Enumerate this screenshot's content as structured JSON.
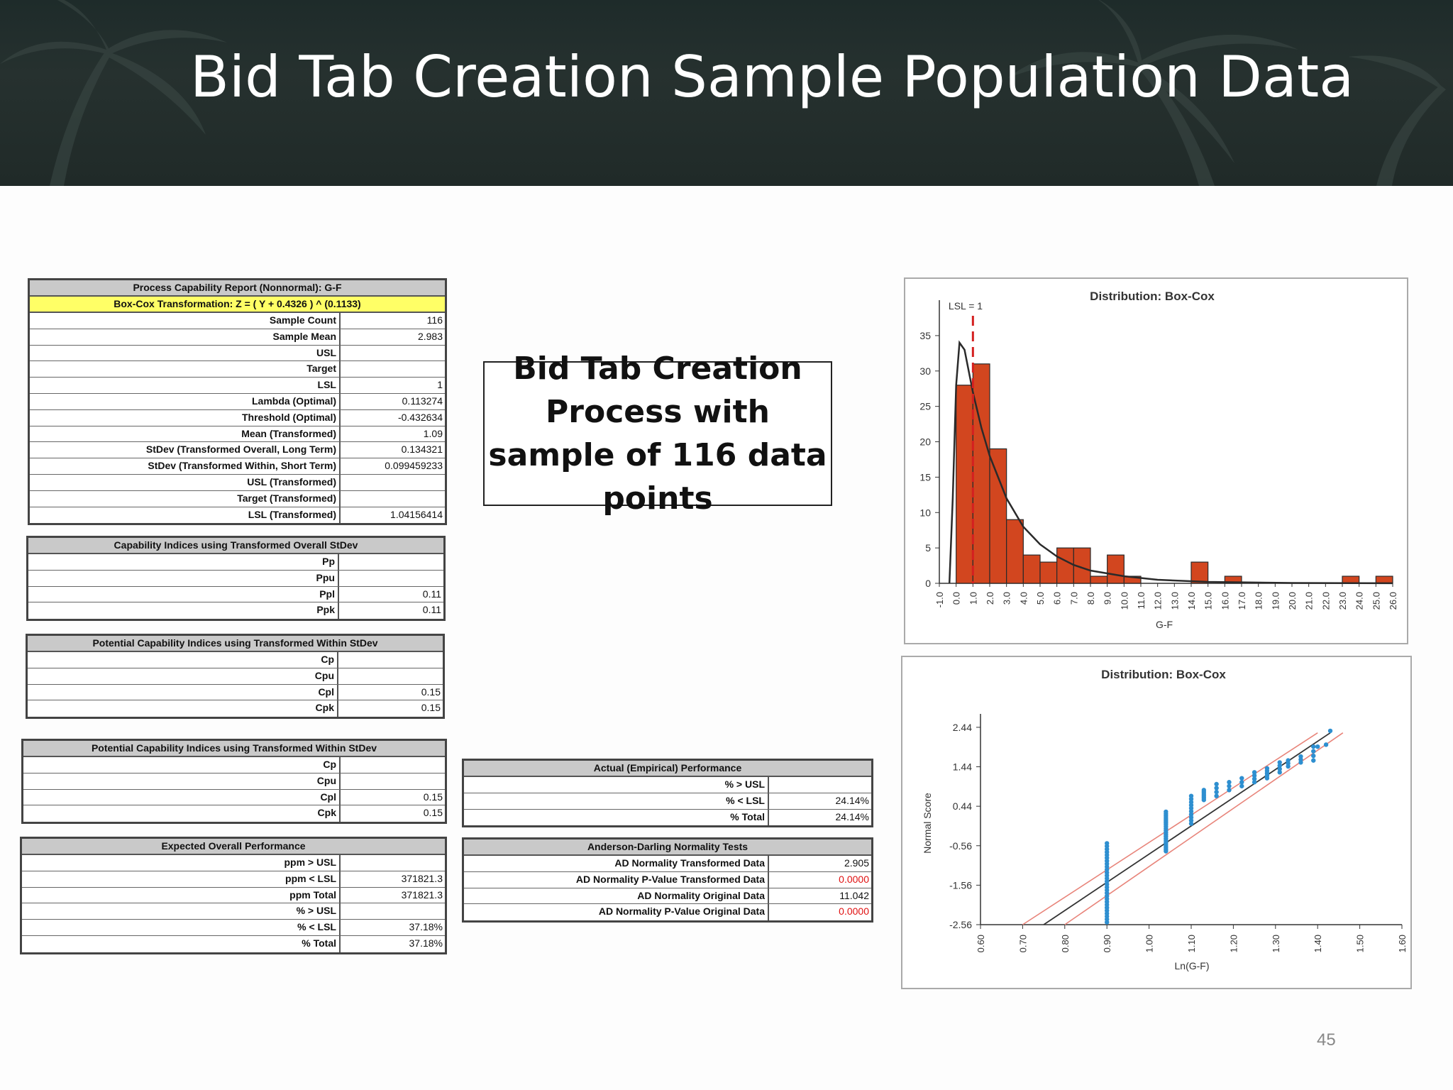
{
  "slide": {
    "title": "Bid Tab Creation Sample Population Data",
    "callout": "Bid Tab Creation Process with sample of 116 data points",
    "page_number": "45"
  },
  "tables": {
    "report": {
      "title": "Process Capability Report (Nonnormal): G-F",
      "subtitle": "Box-Cox Transformation: Z = ( Y + 0.4326 ) ^ (0.1133)",
      "rows": [
        {
          "label": "Sample Count",
          "value": "116"
        },
        {
          "label": "Sample Mean",
          "value": "2.983"
        },
        {
          "label": "USL",
          "value": ""
        },
        {
          "label": "Target",
          "value": ""
        },
        {
          "label": "LSL",
          "value": "1"
        },
        {
          "label": "Lambda (Optimal)",
          "value": "0.113274"
        },
        {
          "label": "Threshold (Optimal)",
          "value": "-0.432634"
        },
        {
          "label": "Mean (Transformed)",
          "value": "1.09"
        },
        {
          "label": "StDev (Transformed Overall, Long Term)",
          "value": "0.134321"
        },
        {
          "label": "StDev (Transformed Within, Short Term)",
          "value": "0.099459233"
        },
        {
          "label": "USL (Transformed)",
          "value": ""
        },
        {
          "label": "Target (Transformed)",
          "value": ""
        },
        {
          "label": "LSL (Transformed)",
          "value": "1.04156414"
        }
      ]
    },
    "capability_overall": {
      "title": "Capability Indices using Transformed Overall StDev",
      "rows": [
        {
          "label": "Pp",
          "value": ""
        },
        {
          "label": "Ppu",
          "value": ""
        },
        {
          "label": "Ppl",
          "value": "0.11"
        },
        {
          "label": "Ppk",
          "value": "0.11"
        }
      ]
    },
    "potential_within_1": {
      "title": "Potential Capability Indices using Transformed Within StDev",
      "rows": [
        {
          "label": "Cp",
          "value": ""
        },
        {
          "label": "Cpu",
          "value": ""
        },
        {
          "label": "Cpl",
          "value": "0.15"
        },
        {
          "label": "Cpk",
          "value": "0.15"
        }
      ]
    },
    "potential_within_2": {
      "title": "Potential Capability Indices using Transformed Within StDev",
      "rows": [
        {
          "label": "Cp",
          "value": ""
        },
        {
          "label": "Cpu",
          "value": ""
        },
        {
          "label": "Cpl",
          "value": "0.15"
        },
        {
          "label": "Cpk",
          "value": "0.15"
        }
      ]
    },
    "expected_overall": {
      "title": "Expected Overall Performance",
      "rows": [
        {
          "label": "ppm > USL",
          "value": ""
        },
        {
          "label": "ppm < LSL",
          "value": "371821.3"
        },
        {
          "label": "ppm Total",
          "value": "371821.3"
        },
        {
          "label": "% > USL",
          "value": ""
        },
        {
          "label": "% < LSL",
          "value": "37.18%"
        },
        {
          "label": "% Total",
          "value": "37.18%"
        }
      ]
    },
    "actual_performance": {
      "title": "Actual (Empirical) Performance",
      "rows": [
        {
          "label": "% > USL",
          "value": ""
        },
        {
          "label": "% < LSL",
          "value": "24.14%"
        },
        {
          "label": "% Total",
          "value": "24.14%"
        }
      ]
    },
    "anderson_darling": {
      "title": "Anderson-Darling Normality Tests",
      "rows": [
        {
          "label": "AD Normality Transformed Data",
          "value": "2.905"
        },
        {
          "label": "AD Normality P-Value Transformed Data",
          "value": "0.0000",
          "color": "#e01010"
        },
        {
          "label": "AD Normality Original Data",
          "value": "11.042"
        },
        {
          "label": "AD Normality P-Value Original Data",
          "value": "0.0000",
          "color": "#e01010"
        }
      ]
    }
  },
  "chart_data": [
    {
      "type": "bar",
      "title": "Distribution: Box-Cox",
      "xlabel": "G-F",
      "ylabel": "",
      "annotation": "LSL = 1",
      "lsl": 1,
      "ylim": [
        0,
        38
      ],
      "yticks": [
        0,
        5,
        10,
        15,
        20,
        25,
        30,
        35
      ],
      "categories": [
        "-1.0",
        "0.0",
        "1.0",
        "2.0",
        "3.0",
        "4.0",
        "5.0",
        "6.0",
        "7.0",
        "8.0",
        "9.0",
        "10.0",
        "11.0",
        "12.0",
        "13.0",
        "14.0",
        "15.0",
        "16.0",
        "17.0",
        "18.0",
        "19.0",
        "20.0",
        "21.0",
        "22.0",
        "23.0",
        "24.0",
        "25.0",
        "26.0"
      ],
      "bins": [
        {
          "x0": 0,
          "x1": 1,
          "value": 28
        },
        {
          "x0": 1,
          "x1": 2,
          "value": 31
        },
        {
          "x0": 2,
          "x1": 3,
          "value": 19
        },
        {
          "x0": 3,
          "x1": 4,
          "value": 9
        },
        {
          "x0": 4,
          "x1": 5,
          "value": 4
        },
        {
          "x0": 5,
          "x1": 6,
          "value": 3
        },
        {
          "x0": 6,
          "x1": 7,
          "value": 5
        },
        {
          "x0": 7,
          "x1": 8,
          "value": 5
        },
        {
          "x0": 8,
          "x1": 9,
          "value": 1
        },
        {
          "x0": 9,
          "x1": 10,
          "value": 4
        },
        {
          "x0": 10,
          "x1": 11,
          "value": 1
        },
        {
          "x0": 14,
          "x1": 15,
          "value": 3
        },
        {
          "x0": 16,
          "x1": 17,
          "value": 1
        },
        {
          "x0": 23,
          "x1": 24,
          "value": 1
        },
        {
          "x0": 25,
          "x1": 26,
          "value": 1
        }
      ],
      "fit_curve": [
        [
          -0.4,
          0
        ],
        [
          -0.2,
          12
        ],
        [
          0,
          28
        ],
        [
          0.2,
          34
        ],
        [
          0.5,
          33
        ],
        [
          1,
          27
        ],
        [
          1.5,
          22
        ],
        [
          2,
          18
        ],
        [
          3,
          12
        ],
        [
          4,
          8
        ],
        [
          5,
          5.5
        ],
        [
          6,
          3.8
        ],
        [
          7,
          2.6
        ],
        [
          8,
          1.8
        ],
        [
          10,
          1
        ],
        [
          12,
          0.5
        ],
        [
          15,
          0.2
        ],
        [
          20,
          0.05
        ],
        [
          26,
          0.01
        ]
      ]
    },
    {
      "type": "scatter",
      "title": "Distribution: Box-Cox",
      "xlabel": "Ln(G-F)",
      "ylabel": "Normal Score",
      "xlim": [
        0.6,
        1.6
      ],
      "ylim": [
        -2.56,
        2.6
      ],
      "xticks": [
        "0.60",
        "0.70",
        "0.80",
        "0.90",
        "1.00",
        "1.10",
        "1.20",
        "1.30",
        "1.40",
        "1.50",
        "1.60"
      ],
      "yticks": [
        "2.44",
        "1.44",
        "0.44",
        "-0.56",
        "-1.56",
        "-2.56"
      ],
      "fit_line": [
        [
          0.75,
          -2.56
        ],
        [
          1.43,
          2.3
        ]
      ],
      "upper_band": [
        [
          0.7,
          -2.56
        ],
        [
          1.4,
          2.3
        ]
      ],
      "lower_band": [
        [
          0.8,
          -2.56
        ],
        [
          1.46,
          2.3
        ]
      ],
      "clusters": [
        {
          "x": 0.9,
          "y_min": -2.5,
          "y_max": -0.5,
          "count": 28
        },
        {
          "x": 1.04,
          "y_min": -0.7,
          "y_max": 0.3,
          "count": 20
        },
        {
          "x": 1.1,
          "y_min": 0.0,
          "y_max": 0.7,
          "count": 10
        },
        {
          "x": 1.13,
          "y_min": 0.6,
          "y_max": 0.85,
          "count": 6
        },
        {
          "x": 1.16,
          "y_min": 0.7,
          "y_max": 1.0,
          "count": 4
        },
        {
          "x": 1.19,
          "y_min": 0.85,
          "y_max": 1.05,
          "count": 3
        },
        {
          "x": 1.22,
          "y_min": 0.95,
          "y_max": 1.15,
          "count": 3
        },
        {
          "x": 1.25,
          "y_min": 1.05,
          "y_max": 1.3,
          "count": 4
        },
        {
          "x": 1.28,
          "y_min": 1.15,
          "y_max": 1.4,
          "count": 5
        },
        {
          "x": 1.31,
          "y_min": 1.3,
          "y_max": 1.55,
          "count": 4
        },
        {
          "x": 1.33,
          "y_min": 1.45,
          "y_max": 1.6,
          "count": 3
        },
        {
          "x": 1.36,
          "y_min": 1.55,
          "y_max": 1.7,
          "count": 3
        },
        {
          "x": 1.39,
          "y_min": 1.6,
          "y_max": 1.95,
          "count": 4
        },
        {
          "x": 1.4,
          "y_min": 1.95,
          "y_max": 2.05,
          "count": 1
        },
        {
          "x": 1.42,
          "y_min": 2.0,
          "y_max": 2.1,
          "count": 1
        },
        {
          "x": 1.43,
          "y_min": 2.35,
          "y_max": 2.4,
          "count": 1
        }
      ]
    }
  ],
  "colors": {
    "bar_fill": "#d2461f",
    "bar_stroke": "#2a2a2a",
    "lsl_line": "#d42020",
    "fit_curve": "#2a2a2a",
    "points": "#2e8fd0",
    "band": "#e8847a",
    "header_yellow": "#ffff66",
    "header_gray": "#c9c9c9"
  }
}
